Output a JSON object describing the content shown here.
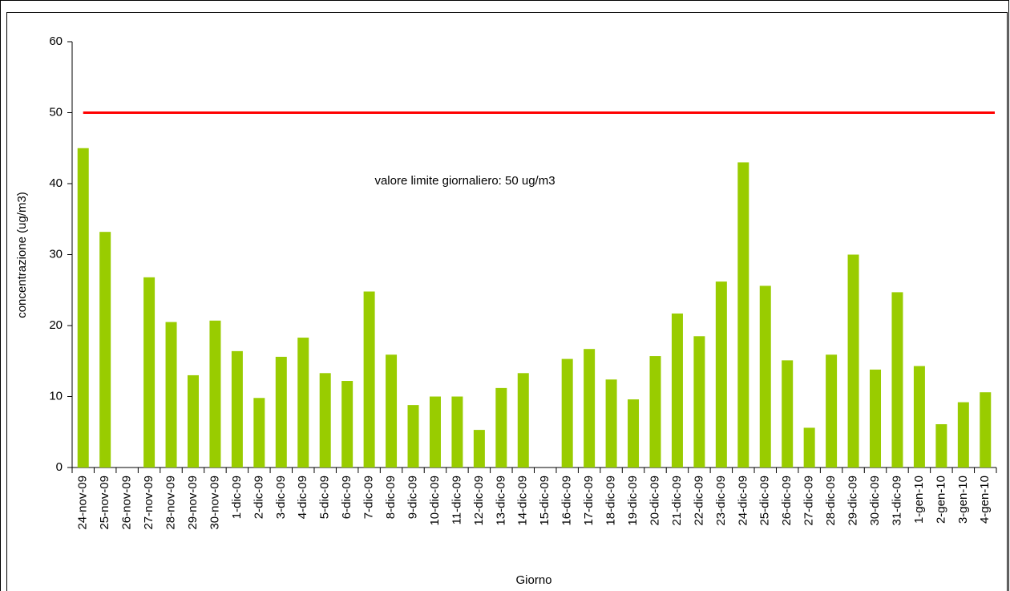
{
  "chart_data": {
    "type": "bar",
    "x_label": "Giorno",
    "y_label": "concentrazione (ug/m3)",
    "annotation": "valore limite giornaliero: 50 ug/m3",
    "categories": [
      "24-nov-09",
      "25-nov-09",
      "26-nov-09",
      "27-nov-09",
      "28-nov-09",
      "29-nov-09",
      "30-nov-09",
      "1-dic-09",
      "2-dic-09",
      "3-dic-09",
      "4-dic-09",
      "5-dic-09",
      "6-dic-09",
      "7-dic-09",
      "8-dic-09",
      "9-dic-09",
      "10-dic-09",
      "11-dic-09",
      "12-dic-09",
      "13-dic-09",
      "14-dic-09",
      "15-dic-09",
      "16-dic-09",
      "17-dic-09",
      "18-dic-09",
      "19-dic-09",
      "20-dic-09",
      "21-dic-09",
      "22-dic-09",
      "23-dic-09",
      "24-dic-09",
      "25-dic-09",
      "26-dic-09",
      "27-dic-09",
      "28-dic-09",
      "29-dic-09",
      "30-dic-09",
      "31-dic-09",
      "1-gen-10",
      "2-gen-10",
      "3-gen-10",
      "4-gen-10"
    ],
    "values": [
      45,
      33.2,
      null,
      26.8,
      20.5,
      13,
      20.7,
      16.4,
      9.8,
      15.6,
      18.3,
      13.3,
      12.2,
      24.8,
      15.9,
      8.8,
      10,
      10,
      5.3,
      11.2,
      13.3,
      null,
      15.3,
      16.7,
      12.4,
      9.6,
      15.7,
      21.7,
      18.5,
      26.2,
      43,
      25.6,
      15.1,
      5.6,
      15.9,
      30,
      13.8,
      24.7,
      14.3,
      6.1,
      9.2,
      10.6
    ],
    "color": "#99cc00",
    "limit_line": {
      "value": 50,
      "color": "#ff0000"
    },
    "ylim": [
      0,
      60
    ],
    "yticks": [
      0,
      10,
      20,
      30,
      40,
      50,
      60
    ],
    "grid": false
  }
}
